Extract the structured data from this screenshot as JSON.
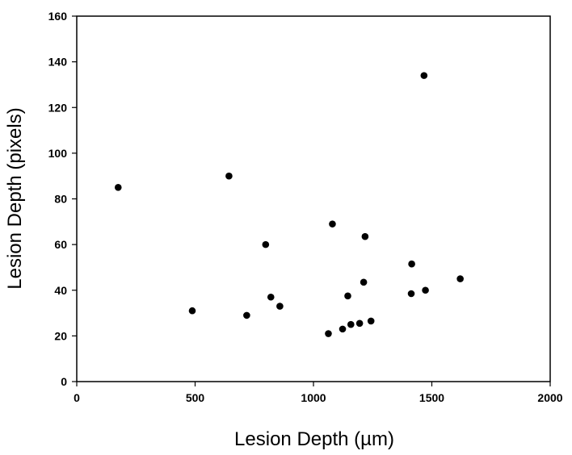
{
  "chart_data": {
    "type": "scatter",
    "title": "",
    "xlabel": "Lesion Depth (µm)",
    "ylabel": "Lesion Depth (pixels)",
    "xlim": [
      0,
      2000
    ],
    "ylim": [
      0,
      160
    ],
    "xticks": [
      0,
      500,
      1000,
      1500,
      2000
    ],
    "yticks": [
      0,
      20,
      40,
      60,
      80,
      100,
      120,
      140,
      160
    ],
    "grid": false,
    "legend": "none",
    "point_color": "#000000",
    "series": [
      {
        "points": [
          {
            "x": 175,
            "y": 85
          },
          {
            "x": 488,
            "y": 31
          },
          {
            "x": 643,
            "y": 90
          },
          {
            "x": 718,
            "y": 29
          },
          {
            "x": 798,
            "y": 60
          },
          {
            "x": 820,
            "y": 37
          },
          {
            "x": 858,
            "y": 33
          },
          {
            "x": 1063,
            "y": 21
          },
          {
            "x": 1080,
            "y": 69
          },
          {
            "x": 1123,
            "y": 23
          },
          {
            "x": 1145,
            "y": 37.5
          },
          {
            "x": 1158,
            "y": 25
          },
          {
            "x": 1195,
            "y": 25.5
          },
          {
            "x": 1212,
            "y": 43.5
          },
          {
            "x": 1218,
            "y": 63.5
          },
          {
            "x": 1243,
            "y": 26.5
          },
          {
            "x": 1413,
            "y": 38.5
          },
          {
            "x": 1415,
            "y": 51.5
          },
          {
            "x": 1467,
            "y": 134
          },
          {
            "x": 1473,
            "y": 40
          },
          {
            "x": 1620,
            "y": 45
          }
        ]
      }
    ]
  }
}
